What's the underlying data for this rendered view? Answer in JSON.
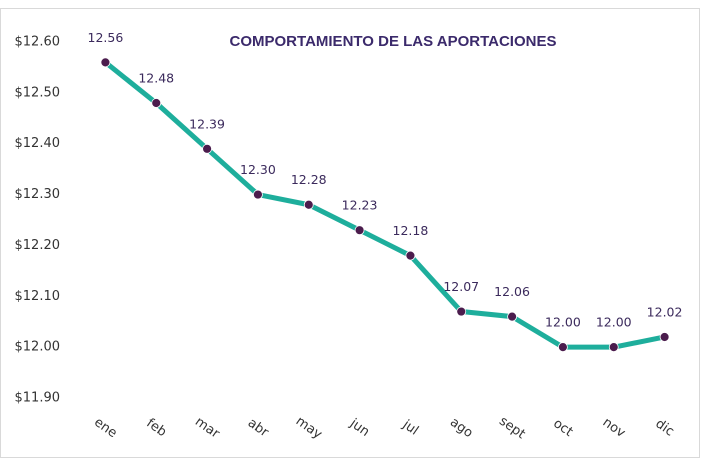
{
  "chart_data": {
    "type": "line",
    "title": "COMPORTAMIENTO DE LAS APORTACIONES",
    "categories": [
      "ene",
      "feb",
      "mar",
      "abr",
      "may",
      "jun",
      "jul",
      "ago",
      "sept",
      "oct",
      "nov",
      "dic"
    ],
    "series": [
      {
        "color": "#1eae9c",
        "marker_color": "#4b1c4d",
        "values": [
          12.56,
          12.48,
          12.39,
          12.3,
          12.28,
          12.23,
          12.18,
          12.07,
          12.06,
          12,
          12,
          12.02
        ],
        "value_labels": [
          "12.56",
          "12.48",
          "12.39",
          "12.30",
          "12.28",
          "12.23",
          "12.18",
          "12.07",
          "12.06",
          "12.00",
          "12.00",
          "12.02"
        ]
      }
    ],
    "ylim": [
      11.9,
      12.6
    ],
    "yticks": [
      {
        "value": 11.9,
        "label": "$11.90"
      },
      {
        "value": 12,
        "label": "$12.00"
      },
      {
        "value": 12.1,
        "label": "$12.10"
      },
      {
        "value": 12.2,
        "label": "$12.20"
      },
      {
        "value": 12.3,
        "label": "$12.30"
      },
      {
        "value": 12.4,
        "label": "$12.40"
      },
      {
        "value": 12.5,
        "label": "$12.50"
      },
      {
        "value": 12.6,
        "label": "$12.60"
      }
    ],
    "grid": false
  }
}
